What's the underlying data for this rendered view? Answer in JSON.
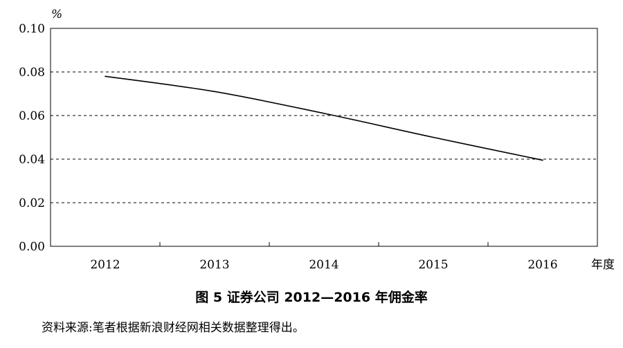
{
  "chart_data": {
    "type": "line",
    "title": "图 5  证券公司 2012—2016 年佣金率",
    "ylabel": "%",
    "xlabel": "年度",
    "categories": [
      "2012",
      "2013",
      "2014",
      "2015",
      "2016"
    ],
    "series": [
      {
        "values": [
          0.078,
          0.071,
          0.061,
          0.05,
          0.0395
        ]
      }
    ],
    "ylim": [
      0,
      0.1
    ],
    "yticks": [
      "0.00",
      "0.02",
      "0.04",
      "0.06",
      "0.08",
      "0.10"
    ],
    "grid": "horizontal dashed",
    "line_color": "#000000"
  },
  "source_note": "资料来源:笔者根据新浪财经网相关数据整理得出。"
}
